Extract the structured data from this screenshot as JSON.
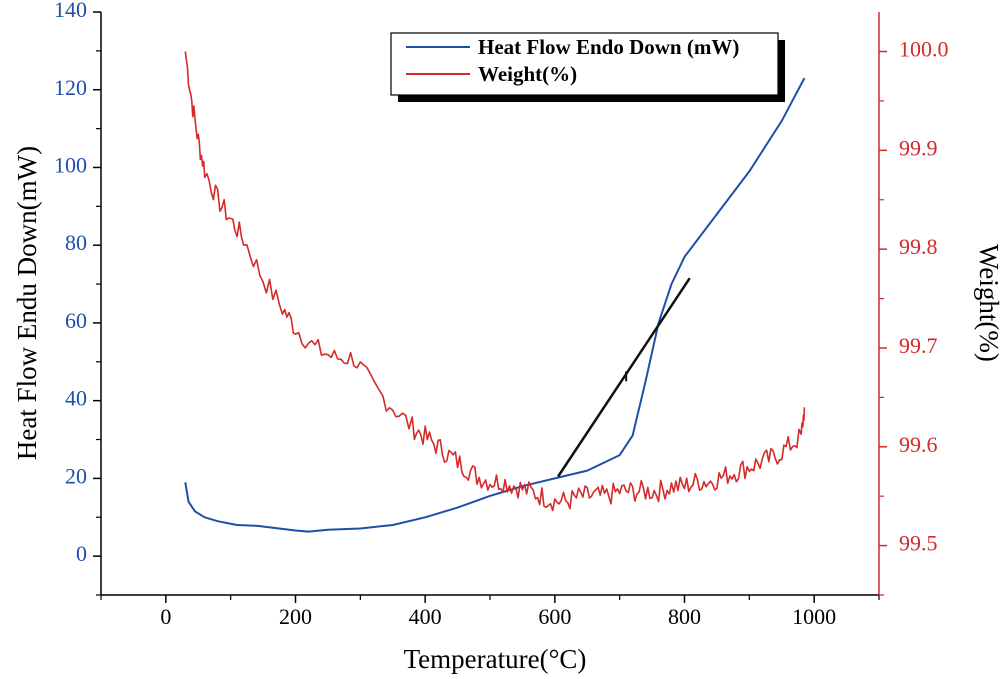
{
  "colors": {
    "heat_flow": "#1f4fa8",
    "weight": "#d42a2a",
    "tangent": "#111111",
    "axes": "#000000"
  },
  "chart_data": {
    "type": "line",
    "xlabel": "Temperature(°C)",
    "ylabel_left": "Heat Flow Endu Down(mW)",
    "ylabel_right": "Weight(%)",
    "xlim": [
      -100,
      1100
    ],
    "ylim_left": [
      -10,
      140
    ],
    "ylim_right": [
      99.45,
      100.04
    ],
    "x_ticks": [
      0,
      200,
      400,
      600,
      800,
      1000
    ],
    "x_tick_labels": [
      "0",
      "200",
      "400",
      "600",
      "800",
      "1000"
    ],
    "y_left_ticks": [
      0,
      20,
      40,
      60,
      80,
      100,
      120,
      140
    ],
    "y_left_tick_labels": [
      "0",
      "20",
      "40",
      "60",
      "80",
      "100",
      "120",
      "140"
    ],
    "y_right_ticks": [
      99.5,
      99.6,
      99.7,
      99.8,
      99.9,
      100.0
    ],
    "y_right_tick_labels": [
      "99.5",
      "99.6",
      "99.7",
      "99.8",
      "99.9",
      "100.0"
    ],
    "legend": [
      "Heat Flow Endo Down (mW)",
      "Weight(%)"
    ],
    "series": [
      {
        "name": "Heat Flow Endo Down (mW)",
        "axis": "left",
        "x": [
          30,
          35,
          45,
          60,
          80,
          110,
          140,
          170,
          200,
          220,
          250,
          300,
          350,
          400,
          450,
          500,
          550,
          600,
          650,
          700,
          720,
          740,
          760,
          780,
          800,
          850,
          900,
          950,
          985
        ],
        "y": [
          19,
          14,
          11.5,
          10,
          9,
          8,
          7.8,
          7.2,
          6.6,
          6.3,
          6.8,
          7.1,
          8,
          10,
          12.5,
          15.5,
          18,
          20,
          22,
          26,
          31,
          45,
          60,
          70,
          77,
          88,
          99,
          112,
          123
        ]
      },
      {
        "name": "Weight(%)",
        "axis": "right",
        "x": [
          30,
          40,
          50,
          60,
          80,
          100,
          120,
          150,
          180,
          200,
          230,
          260,
          290,
          320,
          350,
          380,
          400,
          420,
          440,
          460,
          480,
          500,
          520,
          540,
          560,
          580,
          600,
          620,
          640,
          660,
          680,
          700,
          720,
          740,
          760,
          780,
          800,
          820,
          840,
          860,
          880,
          900,
          920,
          940,
          960,
          980,
          985
        ],
        "y": [
          100.0,
          99.95,
          99.91,
          99.88,
          99.85,
          99.83,
          99.81,
          99.77,
          99.74,
          99.72,
          99.7,
          99.69,
          99.69,
          99.66,
          99.64,
          99.62,
          99.61,
          99.6,
          99.59,
          99.58,
          99.57,
          99.565,
          99.565,
          99.56,
          99.555,
          99.55,
          99.545,
          99.545,
          99.55,
          99.55,
          99.55,
          99.555,
          99.555,
          99.555,
          99.555,
          99.56,
          99.56,
          99.565,
          99.565,
          99.57,
          99.575,
          99.58,
          99.585,
          99.59,
          99.6,
          99.61,
          99.64
        ]
      },
      {
        "name": "tangent",
        "axis": "left",
        "x": [
          605,
          808
        ],
        "y": [
          20.5,
          71.5
        ]
      }
    ],
    "annotations": [
      {
        "type": "tick-mark",
        "x": 710,
        "y": 46
      }
    ]
  }
}
